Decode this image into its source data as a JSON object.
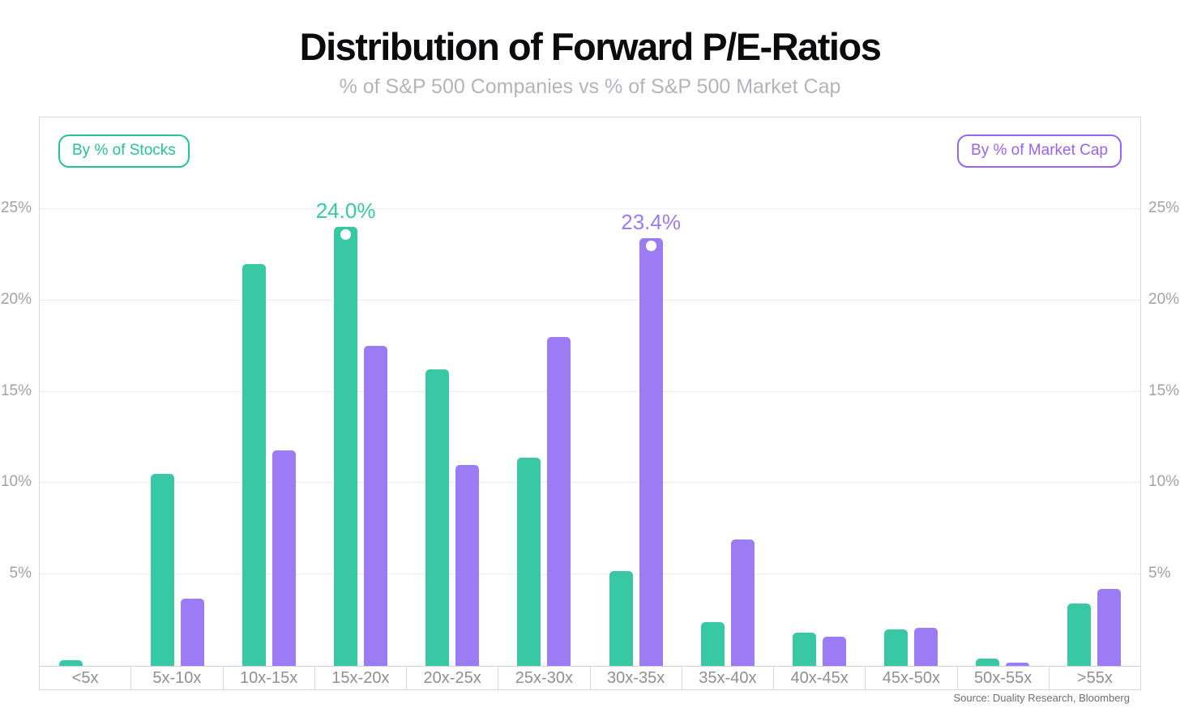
{
  "page": {
    "title": "Distribution of Forward P/E-Ratios",
    "subtitle": "% of S&P 500 Companies vs % of S&P 500 Market Cap",
    "source": "Source: Duality Research, Bloomberg"
  },
  "legend": {
    "stocks_label": "By % of Stocks",
    "market_cap_label": "By % of Market Cap"
  },
  "colors": {
    "stocks_bar": "#38C9A4",
    "market_cap_bar": "#9C7CF4",
    "stocks_badge": "#26C29C",
    "market_cap_badge": "#9A63F3",
    "gridline": "#EDEDF1",
    "chart_border": "#D8D8DD",
    "axis_text": "#A2A2A8",
    "x_axis_text": "#8F8F96",
    "subtitle_text": "#B4B4BA",
    "source_text": "#6F6F75",
    "annotation_dot": "#FFFFFF"
  },
  "chart_data": {
    "type": "bar",
    "title": "Distribution of Forward P/E-Ratios",
    "subtitle": "% of S&P 500 Companies vs % of S&P 500 Market Cap",
    "xlabel": "",
    "ylabel": "",
    "categories": [
      "<5x",
      "5x-10x",
      "10x-15x",
      "15x-20x",
      "20x-25x",
      "25x-30x",
      "30x-35x",
      "35x-40x",
      "40x-45x",
      "45x-50x",
      "50x-55x",
      ">55x"
    ],
    "series": [
      {
        "name": "By % of Stocks",
        "color": "#38C9A4",
        "values": [
          0.3,
          10.5,
          22.0,
          24.0,
          16.2,
          11.4,
          5.2,
          2.4,
          1.8,
          2.0,
          0.4,
          3.4
        ]
      },
      {
        "name": "By % of Market Cap",
        "color": "#9C7CF4",
        "values": [
          0.0,
          3.7,
          11.8,
          17.5,
          11.0,
          18.0,
          23.4,
          6.9,
          1.6,
          2.1,
          0.2,
          4.2
        ]
      }
    ],
    "annotations": [
      {
        "series": 0,
        "category": "15x-20x",
        "label": "24.0%"
      },
      {
        "series": 1,
        "category": "30x-35x",
        "label": "23.4%"
      }
    ],
    "y_ticks": [
      "5%",
      "10%",
      "15%",
      "20%",
      "25%"
    ],
    "y_tick_values": [
      5,
      10,
      15,
      20,
      25
    ],
    "ylim": [
      0,
      30
    ],
    "y_axis_side": "both",
    "grid": true,
    "legend_position": "badges top-left and top-right inside plot"
  }
}
